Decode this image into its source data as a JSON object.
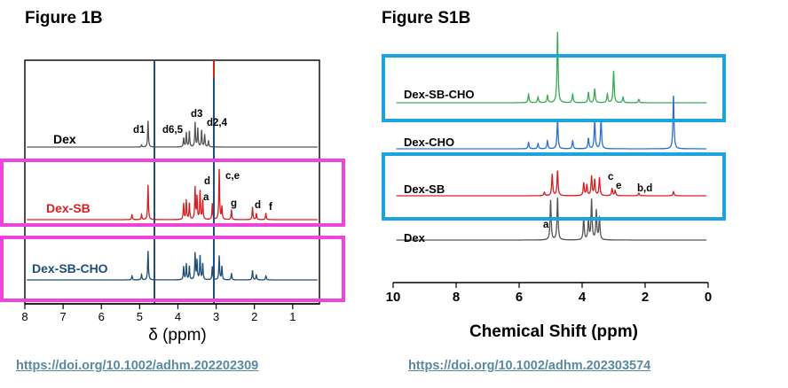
{
  "figures": {
    "left_title": "Figure 1B",
    "right_title": "Figure S1B"
  },
  "links": {
    "left_doi": "https://doi.org/10.1002/adhm.202202309",
    "right_doi": "https://doi.org/10.1002/adhm.202303574"
  },
  "colors": {
    "magenta_box": "#ee44dd",
    "cyan_box": "#1ba4e0",
    "dex": "#555555",
    "dex_sb": "#d62020",
    "dex_sb_cho_left": "#1f4e79",
    "dex_sb_cho_right": "#3aaa55",
    "dex_cho": "#2a6fd6"
  },
  "chart_data": [
    {
      "type": "line",
      "title": "Figure 1B",
      "xlabel": "δ (ppm)",
      "ylabel": "",
      "x_reversed": true,
      "xlim": [
        8,
        0.3
      ],
      "xticks": [
        8,
        7,
        6,
        5,
        4,
        3,
        2,
        1
      ],
      "grid": false,
      "legend": "none",
      "series": [
        {
          "name": "Dex",
          "color": "#555555",
          "peaks": [
            [
              4.95,
              0.05
            ],
            [
              4.78,
              0.65
            ],
            [
              3.85,
              0.22
            ],
            [
              3.78,
              0.35
            ],
            [
              3.7,
              0.38
            ],
            [
              3.55,
              0.6
            ],
            [
              3.48,
              0.45
            ],
            [
              3.38,
              0.4
            ],
            [
              3.3,
              0.3
            ],
            [
              3.2,
              0.15
            ]
          ]
        },
        {
          "name": "Dex-SB",
          "color": "#d62020",
          "peaks": [
            [
              5.2,
              0.08
            ],
            [
              4.95,
              0.08
            ],
            [
              4.78,
              0.55
            ],
            [
              3.85,
              0.25
            ],
            [
              3.78,
              0.3
            ],
            [
              3.7,
              0.25
            ],
            [
              3.55,
              0.5
            ],
            [
              3.5,
              0.35
            ],
            [
              3.42,
              0.45
            ],
            [
              3.35,
              0.3
            ],
            [
              3.1,
              0.25
            ],
            [
              2.92,
              0.8
            ],
            [
              2.85,
              0.2
            ],
            [
              2.6,
              0.15
            ],
            [
              2.05,
              0.2
            ],
            [
              1.95,
              0.1
            ],
            [
              1.7,
              0.1
            ]
          ]
        },
        {
          "name": "Dex-SB-CHO",
          "color": "#1f4e79",
          "peaks": [
            [
              5.2,
              0.08
            ],
            [
              4.95,
              0.1
            ],
            [
              4.78,
              0.55
            ],
            [
              3.85,
              0.25
            ],
            [
              3.78,
              0.3
            ],
            [
              3.7,
              0.25
            ],
            [
              3.55,
              0.5
            ],
            [
              3.5,
              0.35
            ],
            [
              3.42,
              0.45
            ],
            [
              3.35,
              0.3
            ],
            [
              3.1,
              0.25
            ],
            [
              2.92,
              0.45
            ],
            [
              2.85,
              0.25
            ],
            [
              2.6,
              0.12
            ],
            [
              2.05,
              0.18
            ],
            [
              1.95,
              0.1
            ],
            [
              1.7,
              0.08
            ]
          ]
        }
      ],
      "annotations": [
        "d1",
        "d6,5",
        "d3",
        "d2,4",
        "d",
        "c,e",
        "a",
        "g",
        "d",
        "f"
      ]
    },
    {
      "type": "line",
      "title": "Figure S1B",
      "xlabel": "Chemical Shift (ppm)",
      "ylabel": "",
      "x_reversed": true,
      "xlim": [
        10,
        0
      ],
      "xticks": [
        10,
        8,
        6,
        4,
        2,
        0
      ],
      "grid": false,
      "legend": "none",
      "series": [
        {
          "name": "Dex-SB-CHO",
          "color": "#3aaa55",
          "peaks": [
            [
              5.7,
              0.12
            ],
            [
              5.4,
              0.08
            ],
            [
              5.1,
              0.1
            ],
            [
              4.78,
              1.0
            ],
            [
              4.3,
              0.12
            ],
            [
              3.8,
              0.15
            ],
            [
              3.6,
              0.2
            ],
            [
              3.2,
              0.12
            ],
            [
              3.0,
              0.45
            ],
            [
              2.7,
              0.08
            ],
            [
              2.2,
              0.05
            ]
          ]
        },
        {
          "name": "Dex-CHO",
          "color": "#2a6fd6",
          "peaks": [
            [
              5.7,
              0.12
            ],
            [
              5.4,
              0.1
            ],
            [
              5.1,
              0.15
            ],
            [
              4.78,
              0.55
            ],
            [
              4.3,
              0.15
            ],
            [
              3.8,
              0.2
            ],
            [
              3.6,
              0.55
            ],
            [
              3.4,
              0.55
            ],
            [
              1.1,
              1.0
            ]
          ]
        },
        {
          "name": "Dex-SB",
          "color": "#d62020",
          "peaks": [
            [
              5.2,
              0.1
            ],
            [
              4.95,
              0.6
            ],
            [
              4.78,
              0.7
            ],
            [
              3.95,
              0.35
            ],
            [
              3.85,
              0.3
            ],
            [
              3.7,
              0.55
            ],
            [
              3.6,
              0.45
            ],
            [
              3.45,
              0.5
            ],
            [
              3.05,
              0.2
            ],
            [
              2.95,
              0.15
            ],
            [
              2.2,
              0.08
            ],
            [
              1.1,
              0.12
            ]
          ]
        },
        {
          "name": "Dex",
          "color": "#555555",
          "peaks": [
            [
              5.0,
              0.9
            ],
            [
              4.78,
              0.95
            ],
            [
              3.95,
              0.5
            ],
            [
              3.8,
              0.45
            ],
            [
              3.7,
              0.9
            ],
            [
              3.55,
              0.65
            ],
            [
              3.45,
              0.5
            ]
          ]
        }
      ],
      "annotations": [
        "a",
        "c",
        "e",
        "b,d"
      ]
    }
  ]
}
